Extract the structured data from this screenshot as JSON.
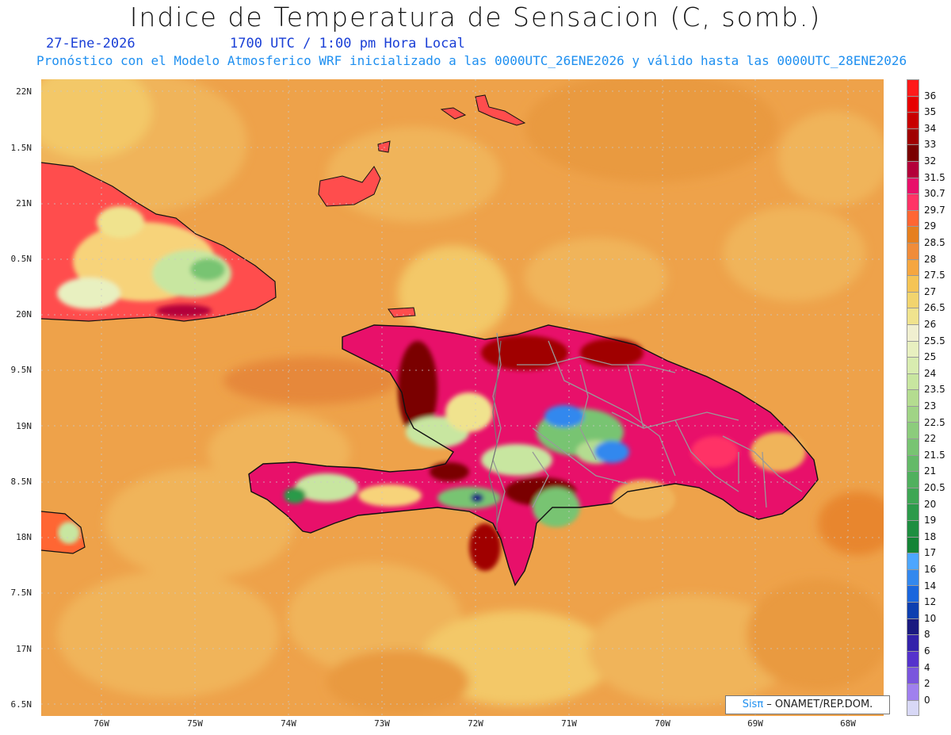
{
  "title": "Indice de Temperatura de Sensacion (C, somb.)",
  "date": "27-Ene-2026",
  "valid_time": "1700 UTC / 1:00 pm Hora Local",
  "subtitle": "Pronóstico con el Modelo Atmosferico WRF inicializado a las 0000UTC_26ENE2026 y válido hasta las  0000UTC_28ENE2026",
  "lat_labels": [
    "22N",
    "1.5N",
    "21N",
    "0.5N",
    "20N",
    "9.5N",
    "19N",
    "8.5N",
    "18N",
    "7.5N",
    "17N",
    "6.5N"
  ],
  "lon_labels": [
    "76W",
    "75W",
    "74W",
    "73W",
    "72W",
    "71W",
    "70W",
    "69W",
    "68W"
  ],
  "colorbar": {
    "labels": [
      "36",
      "35",
      "34",
      "33",
      "32",
      "31.5",
      "30.7",
      "29.7",
      "29",
      "28.5",
      "28",
      "27.5",
      "27",
      "26.5",
      "26",
      "25.5",
      "25",
      "24",
      "23.5",
      "23",
      "22.5",
      "22",
      "21.5",
      "21",
      "20.5",
      "20",
      "19",
      "18",
      "17",
      "16",
      "14",
      "12",
      "10",
      "8",
      "6",
      "4",
      "2",
      "0"
    ],
    "colors": [
      "#ff1a1a",
      "#e60000",
      "#c80000",
      "#a00000",
      "#7a0000",
      "#b3003a",
      "#e8106a",
      "#ff3366",
      "#ff6633",
      "#e67f1f",
      "#f08c3a",
      "#f5a640",
      "#f5c455",
      "#f2d46e",
      "#f0e38e",
      "#f0efd0",
      "#e8f0c0",
      "#d8ecb0",
      "#c8e6a0",
      "#b4dc90",
      "#a0d486",
      "#8ccc7c",
      "#78c472",
      "#64ba68",
      "#50b05e",
      "#3ea654",
      "#2c9a4a",
      "#1e8e40",
      "#148436",
      "#4da6ff",
      "#3388ee",
      "#1a66dd",
      "#0d3fb0",
      "#1a1a80",
      "#3322aa",
      "#5533cc",
      "#7a55dd",
      "#a080ee",
      "#d8d8f6"
    ]
  },
  "credit": {
    "brand": "Sisπ",
    "text": " – ONAMET/REP.DOM."
  }
}
